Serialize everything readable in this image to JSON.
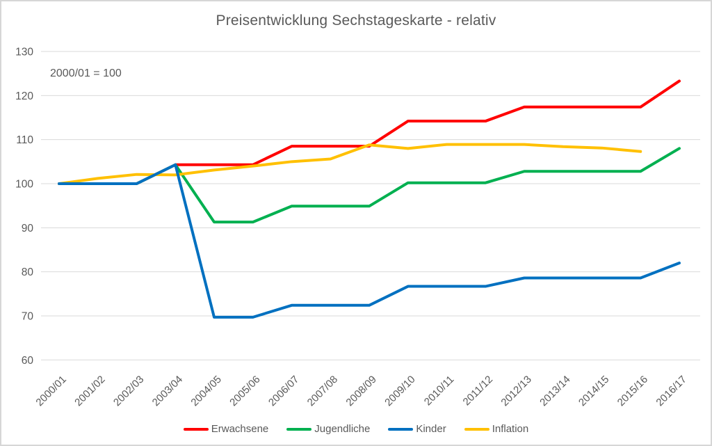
{
  "title": "Preisentwicklung Sechstageskarte - relativ",
  "annotation": "2000/01 = 100",
  "colors": {
    "text": "#595959",
    "grid": "#d9d9d9",
    "background": "#ffffff",
    "border": "#d6d6d6",
    "erwachsene": "#ff0000",
    "jugendliche": "#00b050",
    "kinder": "#0070c0",
    "inflation": "#ffc000"
  },
  "chart_data": {
    "type": "line",
    "title": "Preisentwicklung Sechstageskarte - relativ",
    "annotation": "2000/01 = 100",
    "xlabel": "",
    "ylabel": "",
    "ylim": [
      60,
      130
    ],
    "yticks": [
      60,
      70,
      80,
      90,
      100,
      110,
      120,
      130
    ],
    "grid": true,
    "legend_position": "bottom",
    "categories": [
      "2000/01",
      "2001/02",
      "2002/03",
      "2003/04",
      "2004/05",
      "2005/06",
      "2006/07",
      "2007/08",
      "2008/09",
      "2009/10",
      "2010/11",
      "2011/12",
      "2012/13",
      "2013/14",
      "2014/15",
      "2015/16",
      "2016/17"
    ],
    "series": [
      {
        "name": "Erwachsene",
        "color": "#ff0000",
        "values": [
          100,
          100,
          100,
          104.3,
          104.3,
          104.3,
          108.5,
          108.5,
          108.5,
          114.2,
          114.2,
          114.2,
          117.4,
          117.4,
          117.4,
          117.4,
          123.3
        ]
      },
      {
        "name": "Jugendliche",
        "color": "#00b050",
        "values": [
          100,
          100,
          100,
          104.3,
          91.3,
          91.3,
          94.9,
          94.9,
          94.9,
          100.2,
          100.2,
          100.2,
          102.8,
          102.8,
          102.8,
          102.8,
          108.0
        ]
      },
      {
        "name": "Kinder",
        "color": "#0070c0",
        "values": [
          100,
          100,
          100,
          104.3,
          69.7,
          69.7,
          72.4,
          72.4,
          72.4,
          76.7,
          76.7,
          76.7,
          78.6,
          78.6,
          78.6,
          78.6,
          82.0
        ]
      },
      {
        "name": "Inflation",
        "color": "#ffc000",
        "values": [
          100,
          101.2,
          102.1,
          102.0,
          103.1,
          104.0,
          105.0,
          105.6,
          108.8,
          108.0,
          108.9,
          108.9,
          108.9,
          108.4,
          108.1,
          107.3,
          null
        ]
      }
    ]
  }
}
